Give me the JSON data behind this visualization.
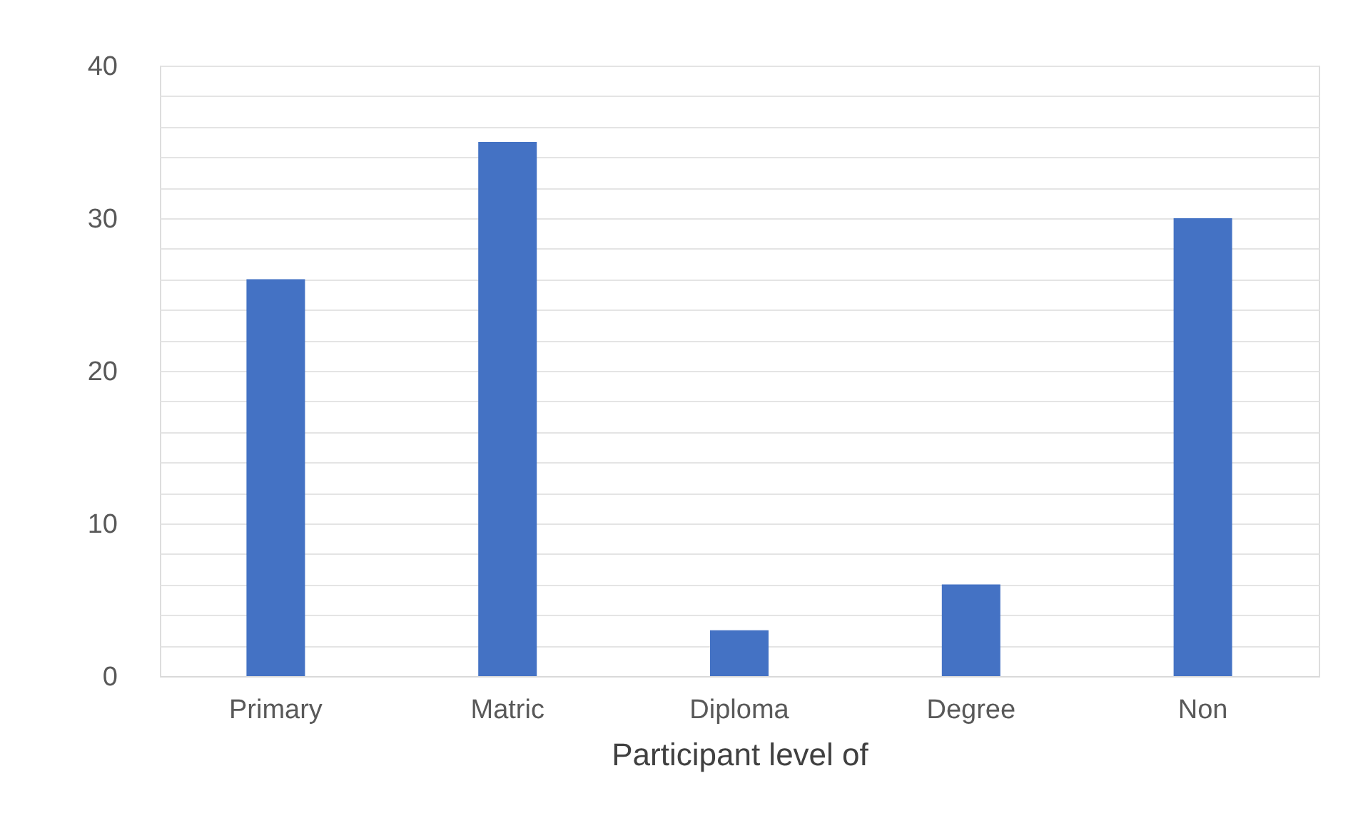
{
  "chart_data": {
    "type": "bar",
    "xlabel": "Participant level of",
    "categories": [
      "Primary",
      "Matric",
      "Diploma",
      "Degree",
      "Non"
    ],
    "values": [
      26,
      35,
      3,
      6,
      30
    ],
    "color": "#4472c4",
    "ylim": [
      0,
      40
    ],
    "yticks": [
      0,
      {
        "value": 2,
        "label": null
      },
      {
        "value": 4,
        "label": null
      },
      {
        "value": 6,
        "label": null
      },
      {
        "value": 8,
        "label": null
      },
      10,
      {
        "value": 12,
        "label": null
      },
      {
        "value": 14,
        "label": null
      },
      {
        "value": 16,
        "label": null
      },
      {
        "value": 18,
        "label": null
      },
      20,
      {
        "value": 22,
        "label": null
      },
      {
        "value": 24,
        "label": null
      },
      {
        "value": 26,
        "label": null
      },
      {
        "value": 28,
        "label": null
      },
      30,
      {
        "value": 32,
        "label": null
      },
      {
        "value": 34,
        "label": null
      },
      {
        "value": 36,
        "label": null
      },
      {
        "value": 38,
        "label": null
      },
      40
    ],
    "grid": true
  }
}
